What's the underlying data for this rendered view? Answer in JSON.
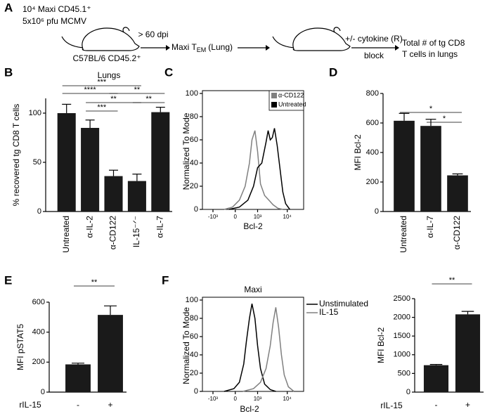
{
  "panel_labels": [
    "A",
    "B",
    "C",
    "D",
    "E",
    "F"
  ],
  "schematic": {
    "inoculum": [
      "10⁴ Maxi CD45.1⁺",
      "5x10⁶ pfu MCMV"
    ],
    "host": "C57BL/6 CD45.2⁺",
    "time": "> 60 dpi",
    "cells": "Maxi T",
    "cells_sub": "EM",
    "cells_tissue": "(Lung)",
    "treatment": "+/- cytokine (R)",
    "treatment_2": "block",
    "readout": [
      "Total # of tg CD8",
      "T cells in lungs"
    ]
  },
  "chart_data": [
    {
      "type": "bar",
      "title": "Lungs",
      "ylabel": "% recovered tg CD8 T cells",
      "categories": [
        "Untreated",
        "α-IL-2",
        "α-CD122",
        "IL-15⁻ᐟ⁻",
        "α-IL-7"
      ],
      "values": [
        100,
        85,
        36,
        31,
        101
      ],
      "errors": [
        9,
        8,
        6,
        7,
        5
      ],
      "color": "#1a1a1a",
      "ylim": [
        0,
        115
      ],
      "yticks": [
        0,
        50,
        100
      ],
      "annotations": [
        {
          "text": "***",
          "from": 0,
          "to": 3
        },
        {
          "text": "****",
          "from": 0,
          "to": 2
        },
        {
          "text": "**",
          "from": 2,
          "to": 4
        },
        {
          "text": "**",
          "from": 1,
          "to": 3
        },
        {
          "text": "**",
          "from": 3,
          "to": 4
        },
        {
          "text": "***",
          "from": 1,
          "to": 2
        }
      ]
    },
    {
      "type": "line",
      "xscale": "biexponential",
      "xlabel": "Bcl-2",
      "ylabel": "Normalized To Mode",
      "xlim": [
        -2300,
        35000
      ],
      "ylim": [
        0,
        100
      ],
      "xticks": [
        {
          "value": -1000,
          "label": "-10³"
        },
        0,
        {
          "value": 1000,
          "label": "10³"
        },
        {
          "value": 10000,
          "label": "10⁴"
        }
      ],
      "yticks": [
        0,
        20,
        40,
        60,
        80,
        100
      ],
      "legend": "upper right",
      "series": [
        {
          "name": "α-CD122",
          "color": "#808080",
          "x": [
            -360,
            -80,
            120,
            310,
            490,
            620,
            800,
            1000,
            1260,
            1750,
            2430,
            3360,
            4880,
            7120
          ],
          "values": [
            0,
            2,
            8,
            20,
            40,
            60,
            68,
            50,
            22,
            12,
            8,
            4,
            1,
            0
          ]
        },
        {
          "name": "Untreated",
          "color": "#000000",
          "x": [
            -190,
            120,
            420,
            710,
            1000,
            1400,
            1950,
            2300,
            2710,
            3180,
            3740,
            4630,
            5740,
            7120,
            8820,
            12150
          ],
          "values": [
            0,
            2,
            8,
            20,
            36,
            40,
            58,
            68,
            60,
            62,
            70,
            55,
            35,
            15,
            5,
            0
          ]
        }
      ]
    },
    {
      "type": "bar",
      "ylabel": "MFI Bcl-2",
      "categories": [
        "Untreated",
        "α-IL-7",
        "α-CD122"
      ],
      "values": [
        615,
        580,
        245
      ],
      "errors": [
        50,
        45,
        10
      ],
      "color": "#1a1a1a",
      "ylim": [
        0,
        800
      ],
      "yticks": [
        0,
        200,
        400,
        600,
        800
      ],
      "annotations": [
        {
          "text": "*",
          "from": 0,
          "to": 2
        },
        {
          "text": "*",
          "from": 1,
          "to": 2
        }
      ]
    },
    {
      "type": "bar",
      "ylabel": "MFI pSTAT5",
      "xlabel": "rIL-15",
      "categories": [
        "-",
        "+"
      ],
      "values": [
        185,
        515
      ],
      "errors": [
        8,
        60
      ],
      "color": "#1a1a1a",
      "ylim": [
        0,
        600
      ],
      "yticks": [
        0,
        200,
        400,
        600
      ],
      "annotations": [
        {
          "text": "**",
          "from": 0,
          "to": 1
        }
      ]
    },
    {
      "type": "line",
      "xscale": "biexponential",
      "title": "Maxi",
      "xlabel": "Bcl-2",
      "ylabel": "Normalized To Mode",
      "xlim": [
        -2300,
        35000
      ],
      "ylim": [
        0,
        100
      ],
      "xticks": [
        {
          "value": -1000,
          "label": "-10³"
        },
        0,
        {
          "value": 1000,
          "label": "10³"
        },
        {
          "value": 10000,
          "label": "10⁴"
        }
      ],
      "yticks": [
        0,
        20,
        40,
        60,
        80,
        100
      ],
      "legend": "outside right",
      "series": [
        {
          "name": "Unstimulated",
          "color": "#000000",
          "x": [
            -360,
            -40,
            120,
            260,
            360,
            490,
            620,
            800,
            1000,
            1260,
            1750,
            2710,
            4160
          ],
          "values": [
            0,
            3,
            10,
            30,
            55,
            80,
            96,
            80,
            50,
            25,
            8,
            2,
            0
          ]
        },
        {
          "name": "IL-15",
          "color": "#808080",
          "x": [
            230,
            710,
            1260,
            1950,
            2710,
            3360,
            4160,
            5150,
            6390,
            7920,
            10900,
            16700
          ],
          "values": [
            0,
            3,
            10,
            25,
            50,
            75,
            92,
            70,
            40,
            18,
            5,
            0
          ]
        }
      ]
    },
    {
      "type": "bar",
      "ylabel": "MFI Bcl-2",
      "xlabel": "rIL-15",
      "categories": [
        "-",
        "+"
      ],
      "values": [
        720,
        2080
      ],
      "errors": [
        20,
        80
      ],
      "color": "#1a1a1a",
      "ylim": [
        0,
        2500
      ],
      "yticks": [
        0,
        500,
        1000,
        1500,
        2000,
        2500
      ],
      "annotations": [
        {
          "text": "**",
          "from": 0,
          "to": 1
        }
      ]
    }
  ]
}
